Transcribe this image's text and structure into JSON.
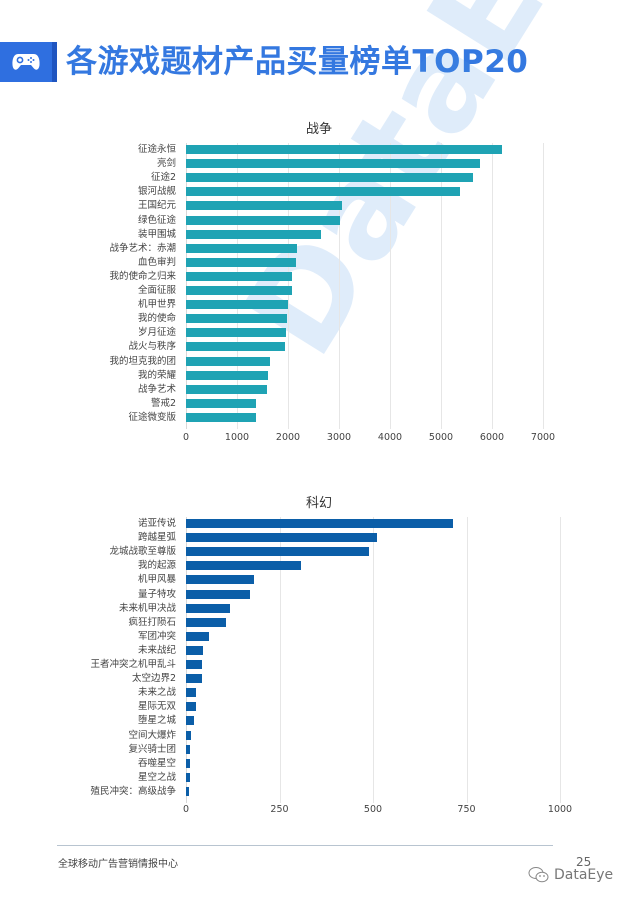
{
  "page": {
    "title": "各游戏题材产品买量榜单TOP20",
    "icon": "gamepad-icon",
    "watermark": "DataEye",
    "footer_text": "全球移动广告营销情报中心",
    "page_number": "25",
    "brand": "DataEye",
    "brand_icon": "wechat-icon",
    "colors": {
      "title": "#3478e0",
      "war_bar": "#1fa3b4",
      "scifi_bar": "#0b5ea8",
      "icon_bg": "#2f6fe0"
    }
  },
  "chart_data": [
    {
      "type": "bar",
      "orientation": "horizontal",
      "title": "战争",
      "xlabel": "",
      "ylabel": "",
      "xlim": [
        0,
        7000
      ],
      "ticks": [
        "0",
        "1000",
        "2000",
        "3000",
        "4000",
        "5000",
        "6000",
        "7000"
      ],
      "grid": true,
      "color": "#1fa3b4",
      "categories": [
        "征途永恒",
        "亮剑",
        "征途2",
        "银河战舰",
        "王国纪元",
        "绿色征途",
        "装甲围城",
        "战争艺术：赤潮",
        "血色审判",
        "我的使命之归来",
        "全面征服",
        "机甲世界",
        "我的使命",
        "岁月征途",
        "战火与秩序",
        "我的坦克我的团",
        "我的荣耀",
        "战争艺术",
        "警戒2",
        "征途微变版"
      ],
      "values": [
        6200,
        5760,
        5630,
        5370,
        3060,
        3020,
        2650,
        2180,
        2160,
        2080,
        2080,
        2000,
        1980,
        1970,
        1940,
        1650,
        1610,
        1590,
        1370,
        1370
      ]
    },
    {
      "type": "bar",
      "orientation": "horizontal",
      "title": "科幻",
      "xlabel": "",
      "ylabel": "",
      "xlim": [
        0,
        1000
      ],
      "ticks": [
        "0",
        "250",
        "500",
        "750",
        "1000"
      ],
      "grid": true,
      "color": "#0b5ea8",
      "categories": [
        "诺亚传说",
        "跨越星弧",
        "龙城战歌至尊版",
        "我的起源",
        "机甲风暴",
        "量子特攻",
        "未来机甲决战",
        "疯狂打陨石",
        "军团冲突",
        "未来战纪",
        "王者冲突之机甲乱斗",
        "太空边界2",
        "未来之战",
        "星际无双",
        "堕星之城",
        "空间大爆炸",
        "复兴骑士团",
        "吞噬星空",
        "星空之战",
        "殖民冲突：高级战争"
      ],
      "values": [
        714,
        510,
        489,
        307,
        182,
        171,
        118,
        107,
        61,
        45,
        43,
        42,
        27,
        26,
        22,
        14,
        12,
        11,
        11,
        7
      ]
    }
  ]
}
